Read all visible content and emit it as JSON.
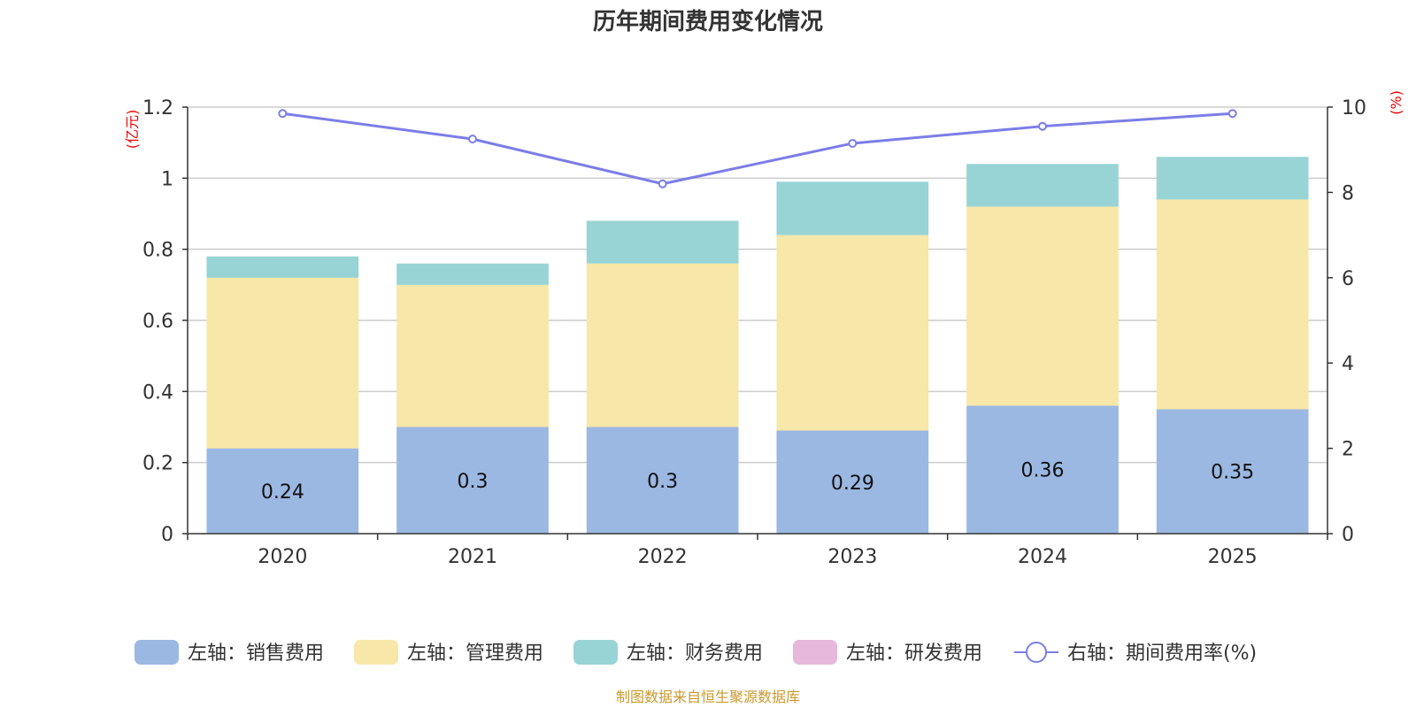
{
  "chart_data": {
    "type": "bar",
    "stacked": true,
    "title": "历年期间费用变化情况",
    "categories": [
      "2020",
      "2021",
      "2022",
      "2023",
      "2024",
      "2025"
    ],
    "series": [
      {
        "name": "左轴：销售费用",
        "axis": "left",
        "color": "#9bb8e2",
        "values": [
          0.24,
          0.3,
          0.3,
          0.29,
          0.36,
          0.35
        ],
        "labels": [
          "0.24",
          "0.3",
          "0.3",
          "0.29",
          "0.36",
          "0.35"
        ]
      },
      {
        "name": "左轴：管理费用",
        "axis": "left",
        "color": "#f7e7a8",
        "values": [
          0.48,
          0.4,
          0.46,
          0.55,
          0.56,
          0.59
        ]
      },
      {
        "name": "左轴：财务费用",
        "axis": "left",
        "color": "#98d4d5",
        "values": [
          0.06,
          0.06,
          0.12,
          0.15,
          0.12,
          0.12
        ]
      },
      {
        "name": "左轴：研发费用",
        "axis": "left",
        "color": "#e7b8db",
        "values": [
          0,
          0,
          0,
          0,
          0,
          0
        ]
      },
      {
        "name": "右轴：期间费用率(%)",
        "axis": "right",
        "type": "line",
        "color": "#7b7de8",
        "values": [
          9.85,
          9.25,
          8.2,
          9.15,
          9.55,
          9.85
        ]
      }
    ],
    "y_left": {
      "unit": "(亿元)",
      "ylim": [
        0,
        1.2
      ],
      "ticks": [
        "0",
        "0.2",
        "0.4",
        "0.6",
        "0.8",
        "1",
        "1.2"
      ],
      "tick_values": [
        0,
        0.2,
        0.4,
        0.6,
        0.8,
        1,
        1.2
      ]
    },
    "y_right": {
      "unit": "(%)",
      "ylim": [
        0,
        10
      ],
      "ticks": [
        "0",
        "2",
        "4",
        "6",
        "8",
        "10"
      ],
      "tick_values": [
        0,
        2,
        4,
        6,
        8,
        10
      ]
    },
    "grid": true,
    "legend_position": "bottom"
  },
  "source_text": "制图数据来自恒生聚源数据库"
}
